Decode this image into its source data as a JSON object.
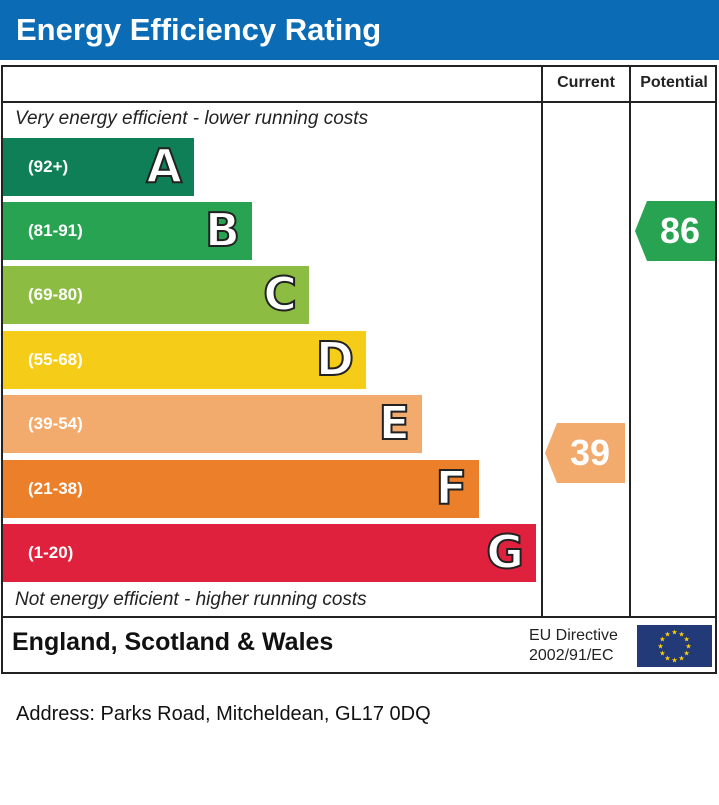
{
  "title": "Energy Efficiency Rating",
  "columns": {
    "current": "Current",
    "potential": "Potential"
  },
  "top_note": "Very energy efficient - lower running costs",
  "bottom_note": "Not energy efficient - higher running costs",
  "chart_data": {
    "type": "bar",
    "title": "Energy Efficiency Rating",
    "categories": [
      "A",
      "B",
      "C",
      "D",
      "E",
      "F",
      "G"
    ],
    "ranges": [
      "(92+)",
      "(81-91)",
      "(69-80)",
      "(55-68)",
      "(39-54)",
      "(21-38)",
      "(1-20)"
    ],
    "colors": [
      "#0f7f57",
      "#27a351",
      "#8cbd42",
      "#f5cc17",
      "#f2aa6d",
      "#eb7f2a",
      "#e0213d"
    ],
    "current": {
      "value": 39,
      "band": "E",
      "color": "#f2aa6d"
    },
    "potential": {
      "value": 86,
      "band": "B",
      "color": "#27a351"
    }
  },
  "footer": {
    "country": "England, Scotland & Wales",
    "directive_line1": "EU Directive",
    "directive_line2": "2002/91/EC"
  },
  "address": "Address: Parks Road, Mitcheldean, GL17 0DQ"
}
